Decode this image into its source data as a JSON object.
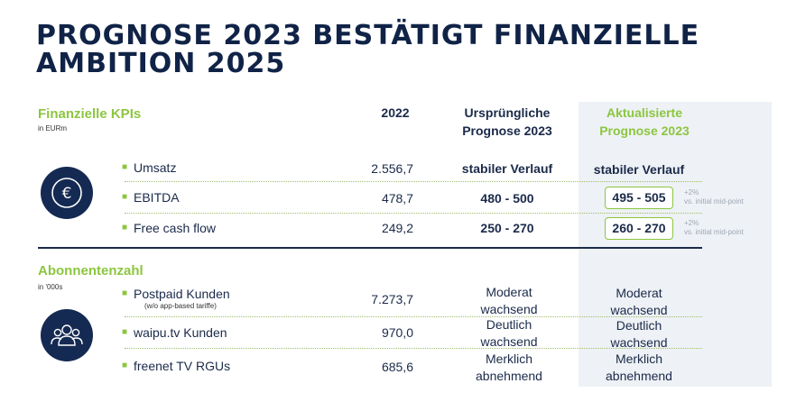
{
  "title": "PROGNOSE 2023 BESTÄTIGT FINANZIELLE AMBITION 2025",
  "colors": {
    "accent": "#8cc63f",
    "navy": "#152a52",
    "highlight_bg": "#eef1f5"
  },
  "kpi_section": {
    "title": "Finanzielle KPIs",
    "unit": "in EURm",
    "icon": "euro-icon"
  },
  "headers": {
    "year": "2022",
    "original": "Ursprüngliche Prognose 2023",
    "updated": "Aktualisierte Prognose 2023"
  },
  "kpis": [
    {
      "label": "Umsatz",
      "v2022": "2.556,7",
      "original": "stabiler Verlauf",
      "updated": "stabiler Verlauf",
      "note_top": "",
      "note_bottom": ""
    },
    {
      "label": "EBITDA",
      "v2022": "478,7",
      "original": "480 - 500",
      "updated": "495 - 505",
      "note_top": "+2%",
      "note_bottom": "vs. initial mid-point"
    },
    {
      "label": "Free cash flow",
      "v2022": "249,2",
      "original": "250 - 270",
      "updated": "260 - 270",
      "note_top": "+2%",
      "note_bottom": "vs. initial mid-point"
    }
  ],
  "sub_section": {
    "title": "Abonnentenzahl",
    "unit": "in '000s",
    "icon": "users-icon"
  },
  "subscribers": [
    {
      "label": "Postpaid Kunden",
      "sublabel": "(w/o app-based tariffe)",
      "v2022": "7.273,7",
      "original_l1": "Moderat",
      "original_l2": "wachsend",
      "updated_l1": "Moderat",
      "updated_l2": "wachsend"
    },
    {
      "label": "waipu.tv Kunden",
      "sublabel": "",
      "v2022": "970,0",
      "original_l1": "Deutlich",
      "original_l2": "wachsend",
      "updated_l1": "Deutlich",
      "updated_l2": "wachsend"
    },
    {
      "label": "freenet TV RGUs",
      "sublabel": "",
      "v2022": "685,6",
      "original_l1": "Merklich",
      "original_l2": "abnehmend",
      "updated_l1": "Merklich",
      "updated_l2": "abnehmend"
    }
  ],
  "bullet": "■"
}
